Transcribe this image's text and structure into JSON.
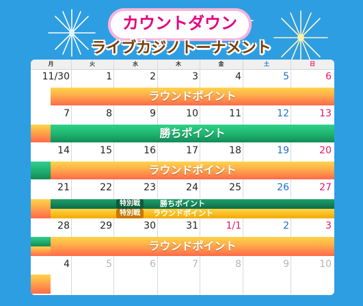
{
  "header": {
    "title_main": "カウントダウン",
    "title_sub": "ライブカジノトーナメント"
  },
  "weekdays": [
    "月",
    "火",
    "水",
    "木",
    "金",
    "土",
    "日"
  ],
  "weeks": [
    [
      "11/30",
      "1",
      "2",
      "3",
      "4",
      "5",
      "6"
    ],
    [
      "7",
      "8",
      "9",
      "10",
      "11",
      "12",
      "13"
    ],
    [
      "14",
      "15",
      "16",
      "17",
      "18",
      "19",
      "20"
    ],
    [
      "21",
      "22",
      "23",
      "24",
      "25",
      "26",
      "27"
    ],
    [
      "28",
      "29",
      "30",
      "31",
      "1/1",
      "2",
      "3"
    ],
    [
      "4",
      "5",
      "6",
      "7",
      "8",
      "9",
      "10"
    ]
  ],
  "banners": {
    "round_label": "ラウンドポイント",
    "win_label": "勝ちポイント",
    "special_tag": "特別戦",
    "special_win_label": "勝ちポイント",
    "special_round_label": "ラウンドポイント"
  },
  "colors": {
    "background": "#2e9ee2",
    "round_gradient_top": "#ffd44a",
    "round_gradient_bottom": "#ff6a4a",
    "win_green": "#1cb06c",
    "saturday": "#1b6fd1",
    "sunday": "#e1146a"
  }
}
